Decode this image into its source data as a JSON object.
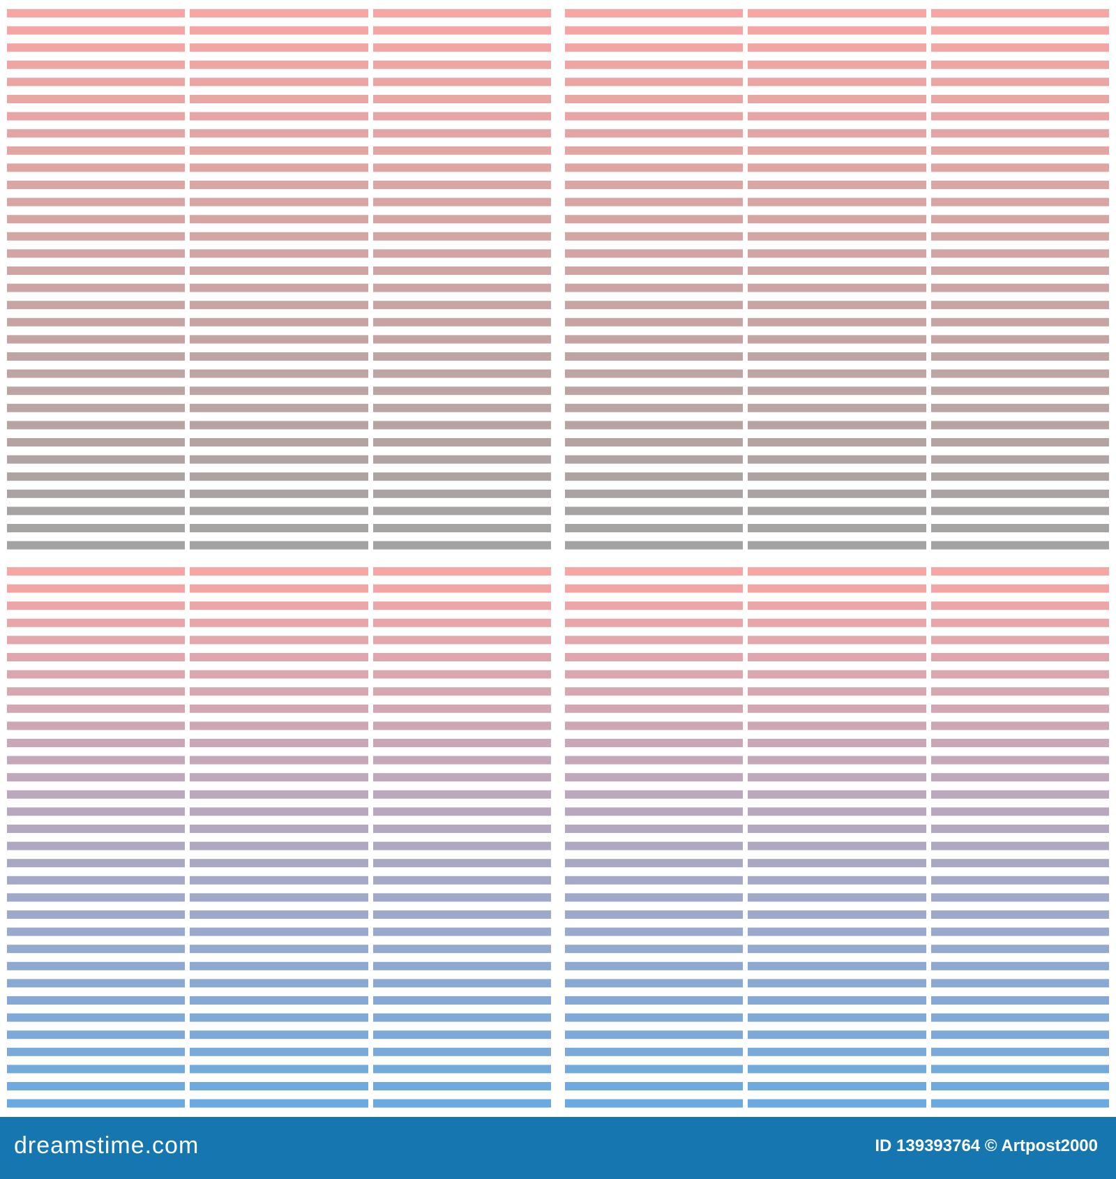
{
  "footer": {
    "brand": "dreamstime.com",
    "credit": "ID 139393764 © Artpost2000"
  }
}
